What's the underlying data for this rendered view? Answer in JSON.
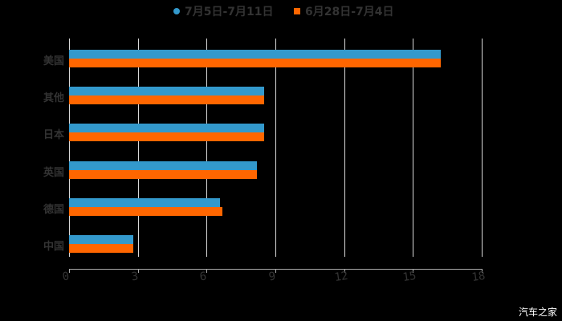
{
  "chart_data": {
    "type": "bar",
    "orientation": "horizontal",
    "title": "",
    "categories": [
      "美国",
      "其他",
      "日本",
      "英国",
      "德国",
      "中国"
    ],
    "series": [
      {
        "name": "7月5日-7月11日",
        "color": "#3399cc",
        "values": [
          16.2,
          8.5,
          8.5,
          8.2,
          6.6,
          2.8
        ]
      },
      {
        "name": "6月28日-7月4日",
        "color": "#ff6600",
        "values": [
          16.2,
          8.5,
          8.5,
          8.2,
          6.7,
          2.8
        ]
      }
    ],
    "xlabel": "",
    "ylabel": "",
    "xlim": [
      0,
      18
    ],
    "xticks": [
      "0",
      "3",
      "6",
      "9",
      "12",
      "15",
      "18"
    ],
    "grid": true,
    "legend_position": "top"
  },
  "legend": [
    {
      "label": "7月5日-7月11日",
      "color": "#3399cc"
    },
    {
      "label": "6月28日-7月4日",
      "color": "#ff6600"
    }
  ],
  "watermark": "汽车之家"
}
